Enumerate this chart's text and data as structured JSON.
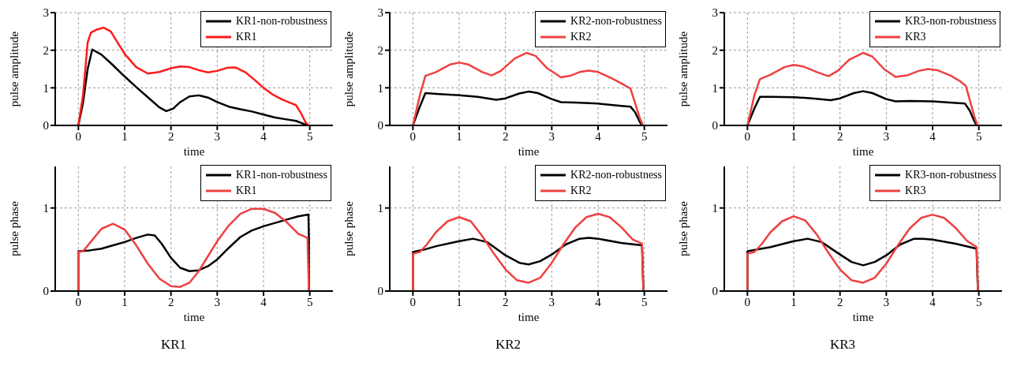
{
  "chart_data": [
    {
      "type": "line",
      "xlabel": "time",
      "ylabel": "pulse amplitude",
      "xlim": [
        -0.5,
        5.5
      ],
      "xticks": [
        0,
        1,
        2,
        3,
        4,
        5
      ],
      "ylim": [
        0,
        3
      ],
      "yticks": [
        0,
        1,
        2,
        3
      ],
      "grid": true,
      "legend": "top right",
      "line_style": "solid",
      "series": [
        {
          "name": "KR1-non-robustness",
          "color": "#000000",
          "x": [
            0,
            0.1,
            0.2,
            0.3,
            0.5,
            0.75,
            1,
            1.25,
            1.5,
            1.75,
            1.9,
            2.05,
            2.2,
            2.4,
            2.6,
            2.8,
            3,
            3.25,
            3.5,
            3.75,
            4,
            4.25,
            4.5,
            4.7,
            4.85,
            4.95
          ],
          "values": [
            0,
            0.6,
            1.5,
            2.02,
            1.88,
            1.6,
            1.3,
            1.02,
            0.75,
            0.48,
            0.38,
            0.45,
            0.62,
            0.77,
            0.8,
            0.74,
            0.62,
            0.5,
            0.43,
            0.37,
            0.29,
            0.21,
            0.16,
            0.12,
            0.05,
            0
          ]
        },
        {
          "name": "KR1",
          "color": "#ff1a1a",
          "x": [
            0,
            0.1,
            0.2,
            0.27,
            0.4,
            0.55,
            0.7,
            0.85,
            1,
            1.25,
            1.5,
            1.75,
            2,
            2.2,
            2.4,
            2.6,
            2.8,
            3,
            3.2,
            3.4,
            3.6,
            3.8,
            4,
            4.2,
            4.4,
            4.6,
            4.7,
            4.8,
            4.9,
            4.97
          ],
          "values": [
            0,
            0.8,
            2.2,
            2.47,
            2.55,
            2.6,
            2.5,
            2.2,
            1.9,
            1.55,
            1.38,
            1.42,
            1.52,
            1.57,
            1.55,
            1.47,
            1.41,
            1.45,
            1.53,
            1.54,
            1.42,
            1.22,
            1,
            0.82,
            0.69,
            0.59,
            0.54,
            0.35,
            0.1,
            0
          ]
        }
      ]
    },
    {
      "type": "line",
      "xlabel": "time",
      "ylabel": "pulse amplitude",
      "xlim": [
        -0.5,
        5.5
      ],
      "xticks": [
        0,
        1,
        2,
        3,
        4,
        5
      ],
      "ylim": [
        0,
        3
      ],
      "yticks": [
        0,
        1,
        2,
        3
      ],
      "grid": true,
      "legend": "top right",
      "line_style": "solid",
      "series": [
        {
          "name": "KR2-non-robustness",
          "color": "#000000",
          "x": [
            0,
            0.15,
            0.27,
            0.5,
            1,
            1.4,
            1.8,
            2,
            2.3,
            2.5,
            2.7,
            3,
            3.2,
            3.5,
            4,
            4.5,
            4.7,
            4.8,
            4.9,
            4.95
          ],
          "values": [
            0,
            0.5,
            0.86,
            0.84,
            0.8,
            0.76,
            0.68,
            0.72,
            0.85,
            0.9,
            0.86,
            0.7,
            0.62,
            0.61,
            0.58,
            0.52,
            0.5,
            0.35,
            0.1,
            0
          ]
        },
        {
          "name": "KR2",
          "color": "#ef4040",
          "x": [
            0,
            0.15,
            0.27,
            0.5,
            0.8,
            1,
            1.2,
            1.5,
            1.7,
            1.9,
            2.2,
            2.45,
            2.65,
            2.9,
            3.2,
            3.4,
            3.6,
            3.8,
            4,
            4.3,
            4.5,
            4.7,
            4.8,
            4.9,
            4.97
          ],
          "values": [
            0,
            0.8,
            1.32,
            1.42,
            1.62,
            1.67,
            1.62,
            1.42,
            1.33,
            1.45,
            1.78,
            1.93,
            1.85,
            1.52,
            1.28,
            1.32,
            1.42,
            1.46,
            1.42,
            1.25,
            1.12,
            0.98,
            0.6,
            0.2,
            0
          ]
        }
      ]
    },
    {
      "type": "line",
      "xlabel": "time",
      "ylabel": "pulse amplitude",
      "xlim": [
        -0.5,
        5.5
      ],
      "xticks": [
        0,
        1,
        2,
        3,
        4,
        5
      ],
      "ylim": [
        0,
        3
      ],
      "yticks": [
        0,
        1,
        2,
        3
      ],
      "grid": true,
      "legend": "top right",
      "line_style": "solid",
      "series": [
        {
          "name": "KR3-non-robustness",
          "color": "#000000",
          "x": [
            0,
            0.15,
            0.27,
            0.5,
            1,
            1.4,
            1.8,
            2,
            2.3,
            2.5,
            2.7,
            3,
            3.2,
            3.5,
            4,
            4.5,
            4.7,
            4.8,
            4.9,
            4.95
          ],
          "values": [
            0,
            0.45,
            0.76,
            0.76,
            0.75,
            0.72,
            0.67,
            0.72,
            0.86,
            0.91,
            0.86,
            0.7,
            0.64,
            0.65,
            0.64,
            0.6,
            0.58,
            0.4,
            0.12,
            0
          ]
        },
        {
          "name": "KR3",
          "color": "#ef4040",
          "x": [
            0,
            0.15,
            0.27,
            0.5,
            0.8,
            1,
            1.2,
            1.5,
            1.75,
            1.95,
            2.2,
            2.5,
            2.7,
            2.95,
            3.2,
            3.45,
            3.7,
            3.9,
            4.1,
            4.4,
            4.6,
            4.72,
            4.82,
            4.9,
            4.97
          ],
          "values": [
            0,
            0.8,
            1.23,
            1.35,
            1.55,
            1.61,
            1.57,
            1.42,
            1.31,
            1.45,
            1.75,
            1.93,
            1.83,
            1.5,
            1.29,
            1.33,
            1.45,
            1.5,
            1.47,
            1.32,
            1.17,
            1.05,
            0.6,
            0.25,
            0
          ]
        }
      ]
    },
    {
      "type": "line",
      "xlabel": "time",
      "ylabel": "pulse phase",
      "xlim": [
        -0.5,
        5.5
      ],
      "xticks": [
        0,
        1,
        2,
        3,
        4,
        5
      ],
      "ylim": [
        0,
        1.5
      ],
      "yticks": [
        0,
        1
      ],
      "grid": true,
      "legend": "top right",
      "line_style": "solid",
      "annotations": [
        "KR1"
      ],
      "series": [
        {
          "name": "KR1-non-robustness",
          "color": "#000000",
          "x": [
            0,
            0,
            0.25,
            0.5,
            0.75,
            1,
            1.25,
            1.5,
            1.65,
            1.8,
            2,
            2.2,
            2.4,
            2.6,
            2.8,
            3,
            3.25,
            3.5,
            3.75,
            4,
            4.25,
            4.5,
            4.75,
            4.97,
            4.98,
            4.98
          ],
          "values": [
            0,
            0.48,
            0.49,
            0.51,
            0.55,
            0.59,
            0.64,
            0.68,
            0.67,
            0.57,
            0.4,
            0.28,
            0.24,
            0.25,
            0.3,
            0.38,
            0.52,
            0.65,
            0.73,
            0.78,
            0.82,
            0.86,
            0.9,
            0.92,
            0.64,
            0
          ]
        },
        {
          "name": "KR1",
          "color": "#ef4040",
          "x": [
            0,
            0,
            0.1,
            0.25,
            0.5,
            0.75,
            1,
            1.25,
            1.5,
            1.75,
            2,
            2.2,
            2.4,
            2.6,
            2.8,
            3,
            3.25,
            3.5,
            3.75,
            4,
            4.25,
            4.5,
            4.75,
            4.95,
            4.98
          ],
          "values": [
            0,
            0.47,
            0.48,
            0.58,
            0.75,
            0.81,
            0.74,
            0.55,
            0.33,
            0.15,
            0.06,
            0.05,
            0.1,
            0.24,
            0.42,
            0.6,
            0.79,
            0.93,
            0.99,
            0.99,
            0.94,
            0.83,
            0.69,
            0.64,
            0
          ]
        }
      ]
    },
    {
      "type": "line",
      "xlabel": "time",
      "ylabel": "pulse phase",
      "xlim": [
        -0.5,
        5.5
      ],
      "xticks": [
        0,
        1,
        2,
        3,
        4,
        5
      ],
      "ylim": [
        0,
        1.5
      ],
      "yticks": [
        0,
        1
      ],
      "grid": true,
      "legend": "top right",
      "line_style": "solid",
      "annotations": [
        "KR2"
      ],
      "series": [
        {
          "name": "KR2-non-robustness",
          "color": "#000000",
          "x": [
            0,
            0,
            0.25,
            0.5,
            1,
            1.3,
            1.6,
            2,
            2.3,
            2.5,
            2.75,
            3,
            3.3,
            3.6,
            3.8,
            4,
            4.5,
            4.95,
            4.98
          ],
          "values": [
            0,
            0.47,
            0.5,
            0.54,
            0.6,
            0.63,
            0.59,
            0.43,
            0.34,
            0.32,
            0.36,
            0.44,
            0.56,
            0.63,
            0.64,
            0.63,
            0.58,
            0.55,
            0
          ]
        },
        {
          "name": "KR2",
          "color": "#ef4040",
          "x": [
            0,
            0,
            0.15,
            0.3,
            0.5,
            0.75,
            1,
            1.25,
            1.5,
            1.75,
            2,
            2.25,
            2.5,
            2.75,
            3,
            3.25,
            3.5,
            3.75,
            4,
            4.25,
            4.5,
            4.75,
            4.95,
            4.98
          ],
          "values": [
            0,
            0.45,
            0.47,
            0.56,
            0.71,
            0.84,
            0.89,
            0.84,
            0.66,
            0.45,
            0.26,
            0.13,
            0.1,
            0.16,
            0.34,
            0.56,
            0.76,
            0.89,
            0.93,
            0.89,
            0.77,
            0.62,
            0.57,
            0
          ]
        }
      ]
    },
    {
      "type": "line",
      "xlabel": "time",
      "ylabel": "pulse phase",
      "xlim": [
        -0.5,
        5.5
      ],
      "xticks": [
        0,
        1,
        2,
        3,
        4,
        5
      ],
      "ylim": [
        0,
        1.5
      ],
      "yticks": [
        0,
        1
      ],
      "grid": true,
      "legend": "top right",
      "line_style": "solid",
      "annotations": [
        "KR3"
      ],
      "series": [
        {
          "name": "KR3-non-robustness",
          "color": "#000000",
          "x": [
            0,
            0,
            0.5,
            1,
            1.3,
            1.6,
            2,
            2.25,
            2.5,
            2.75,
            3,
            3.3,
            3.6,
            3.8,
            4,
            4.5,
            4.95,
            4.98
          ],
          "values": [
            0,
            0.48,
            0.53,
            0.6,
            0.63,
            0.59,
            0.44,
            0.35,
            0.31,
            0.35,
            0.43,
            0.56,
            0.63,
            0.63,
            0.62,
            0.57,
            0.51,
            0
          ]
        },
        {
          "name": "KR3",
          "color": "#ef4040",
          "x": [
            0,
            0,
            0.15,
            0.3,
            0.5,
            0.75,
            1,
            1.25,
            1.5,
            1.75,
            2,
            2.25,
            2.5,
            2.75,
            3,
            3.25,
            3.5,
            3.75,
            4,
            4.25,
            4.5,
            4.75,
            4.95,
            4.98
          ],
          "values": [
            0,
            0.45,
            0.47,
            0.56,
            0.71,
            0.84,
            0.9,
            0.85,
            0.68,
            0.46,
            0.26,
            0.13,
            0.1,
            0.16,
            0.33,
            0.55,
            0.75,
            0.88,
            0.92,
            0.88,
            0.76,
            0.6,
            0.53,
            0
          ]
        }
      ]
    }
  ]
}
